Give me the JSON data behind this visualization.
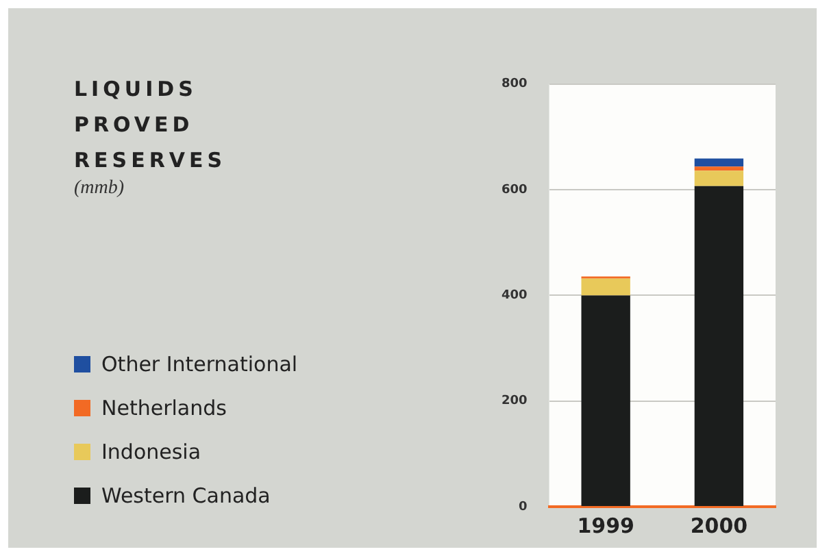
{
  "chart_data": {
    "type": "bar",
    "title": "LIQUIDS PROVED RESERVES",
    "subtitle": "(mmb)",
    "categories": [
      "1999",
      "2000"
    ],
    "stacked": true,
    "series": [
      {
        "name": "Western Canada",
        "color": "#1b1d1c",
        "values": [
          400,
          607
        ]
      },
      {
        "name": "Indonesia",
        "color": "#e8c95a",
        "values": [
          32,
          29
        ]
      },
      {
        "name": "Netherlands",
        "color": "#f26a24",
        "values": [
          4,
          8
        ]
      },
      {
        "name": "Other International",
        "color": "#1f4fa0",
        "values": [
          0,
          15
        ]
      }
    ],
    "ylim": [
      0,
      800
    ],
    "yticks": [
      0,
      200,
      400,
      600,
      800
    ],
    "grid": "y",
    "legend": "left"
  }
}
